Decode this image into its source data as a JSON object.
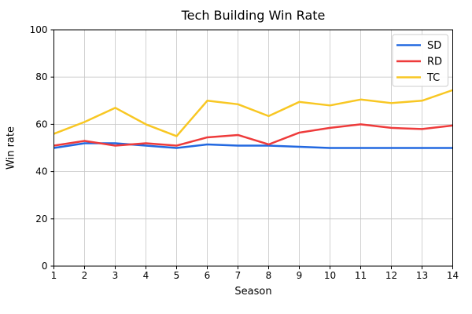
{
  "chart_data": {
    "type": "line",
    "title": "Tech Building Win Rate",
    "xlabel": "Season",
    "ylabel": "Win rate",
    "x": [
      1,
      2,
      3,
      4,
      5,
      6,
      7,
      8,
      9,
      10,
      11,
      12,
      13,
      14
    ],
    "xlim": [
      1,
      14
    ],
    "ylim": [
      0,
      100
    ],
    "yticks": [
      0,
      20,
      40,
      60,
      80,
      100
    ],
    "grid": true,
    "grid_color": "#c6c6c6",
    "legend_position": "upper right",
    "legend_border_color": "#cccccc",
    "series": [
      {
        "name": "SD",
        "color": "#2268e0",
        "values": [
          50,
          52,
          52,
          51,
          50,
          51.5,
          51,
          51,
          50.5,
          50,
          50,
          50,
          50,
          50
        ]
      },
      {
        "name": "RD",
        "color": "#ee3b3b",
        "values": [
          51,
          53,
          51,
          52,
          51,
          54.5,
          55.5,
          51.5,
          56.5,
          58.5,
          60,
          58.5,
          58,
          59.5
        ]
      },
      {
        "name": "TC",
        "color": "#f8c723",
        "values": [
          56,
          61,
          67,
          60,
          55,
          70,
          68.5,
          63.5,
          69.5,
          68,
          70.5,
          69,
          70,
          74.5
        ]
      }
    ]
  }
}
